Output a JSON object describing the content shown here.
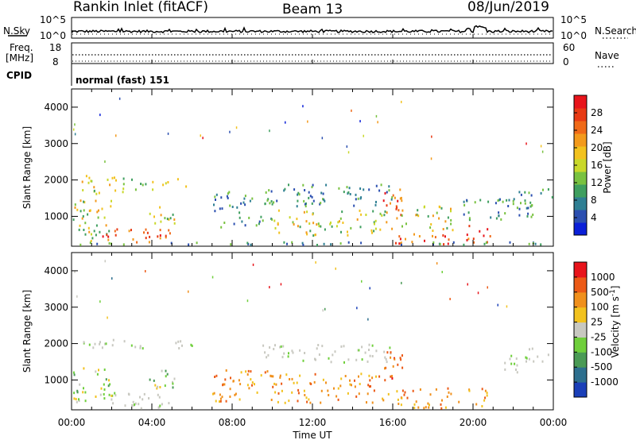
{
  "header": {
    "station": "Rankin Inlet (fitACF)",
    "beam": "Beam 13",
    "date": "08/Jun/2019"
  },
  "top_panels": {
    "nsky": {
      "label": "N.Sky",
      "ticks": [
        "10^5",
        "10^0"
      ]
    },
    "nsearch": {
      "label": "N.Search",
      "ticks": [
        "10^5",
        "10^0"
      ]
    },
    "freq": {
      "label_line1": "Freq.",
      "label_line2": "[MHz]",
      "ticks": [
        "18",
        "8"
      ]
    },
    "nave": {
      "label": "Nave",
      "ticks": [
        "60",
        "0"
      ]
    },
    "cpid": {
      "label": "CPID",
      "mode": "normal (fast) 151"
    }
  },
  "chart_data": [
    {
      "type": "heatmap",
      "name": "power",
      "ylabel": "Slant Range [km]",
      "xlabel": "",
      "xlim": [
        0,
        24
      ],
      "ylim": [
        180,
        4500
      ],
      "yticks": [
        "1000",
        "2000",
        "3000",
        "4000"
      ],
      "colorbar": {
        "label": "Power [dB]",
        "ticks": [
          "28",
          "24",
          "20",
          "16",
          "12",
          "8",
          "4"
        ],
        "colors": [
          "#0a1fd8",
          "#2b4fb0",
          "#2f7f93",
          "#3f9f5f",
          "#79c240",
          "#c9d82a",
          "#f2c21e",
          "#f39a1c",
          "#f06a18",
          "#e83a14",
          "#e8141b"
        ]
      },
      "regions": [
        {
          "t": [
            0.4,
            2.3
          ],
          "r": [
            1600,
            2150
          ],
          "level": "medium"
        },
        {
          "t": [
            2.5,
            4.2
          ],
          "r": [
            1700,
            2100
          ],
          "level": "medium"
        },
        {
          "t": [
            4.5,
            6.0
          ],
          "r": [
            1800,
            2100
          ],
          "level": "medium"
        },
        {
          "t": [
            0.0,
            2.0
          ],
          "r": [
            300,
            1500
          ],
          "level": "medium"
        },
        {
          "t": [
            1.5,
            5.0
          ],
          "r": [
            200,
            700
          ],
          "level": "high"
        },
        {
          "t": [
            3.8,
            5.2
          ],
          "r": [
            800,
            1300
          ],
          "level": "medium"
        },
        {
          "t": [
            7.0,
            10.0
          ],
          "r": [
            700,
            1700
          ],
          "level": "low"
        },
        {
          "t": [
            9.5,
            16.0
          ],
          "r": [
            1300,
            1900
          ],
          "level": "low"
        },
        {
          "t": [
            10.0,
            16.0
          ],
          "r": [
            500,
            1200
          ],
          "level": "medium"
        },
        {
          "t": [
            15.5,
            16.5
          ],
          "r": [
            900,
            1800
          ],
          "level": "high"
        },
        {
          "t": [
            16.0,
            19.3
          ],
          "r": [
            250,
            550
          ],
          "level": "high"
        },
        {
          "t": [
            16.0,
            19.0
          ],
          "r": [
            600,
            1300
          ],
          "level": "medium"
        },
        {
          "t": [
            19.5,
            21.0
          ],
          "r": [
            300,
            800
          ],
          "level": "high"
        },
        {
          "t": [
            19.5,
            23.0
          ],
          "r": [
            900,
            1500
          ],
          "level": "low"
        },
        {
          "t": [
            21.5,
            23.0
          ],
          "r": [
            1200,
            1700
          ],
          "level": "low"
        },
        {
          "t": [
            22.5,
            24.0
          ],
          "r": [
            1500,
            1800
          ],
          "level": "low"
        },
        {
          "t": [
            0.0,
            24.0
          ],
          "r": [
            180,
            320
          ],
          "level": "low"
        }
      ]
    },
    {
      "type": "heatmap",
      "name": "velocity",
      "ylabel": "Slant Range [km]",
      "xlabel": "Time UT",
      "xlim": [
        0,
        24
      ],
      "ylim": [
        180,
        4500
      ],
      "xticks": [
        "00:00",
        "04:00",
        "08:00",
        "12:00",
        "16:00",
        "20:00",
        "00:00"
      ],
      "yticks": [
        "1000",
        "2000",
        "3000",
        "4000"
      ],
      "colorbar": {
        "label": "Velocity [m s^-1]",
        "ticks": [
          "1000",
          "500",
          "100",
          "25",
          "-25",
          "-100",
          "-500",
          "-1000"
        ],
        "colors": [
          "#1a3fb8",
          "#2d6f8e",
          "#4a9a55",
          "#6fcf3b",
          "#c8c8c0",
          "#f2c21e",
          "#f0901c",
          "#ec5a16",
          "#e8141b"
        ]
      },
      "regions": [
        {
          "t": [
            0.4,
            2.3
          ],
          "r": [
            1900,
            2150
          ],
          "level": "ground"
        },
        {
          "t": [
            2.5,
            4.2
          ],
          "r": [
            1900,
            2100
          ],
          "level": "ground"
        },
        {
          "t": [
            4.5,
            6.0
          ],
          "r": [
            1900,
            2100
          ],
          "level": "ground"
        },
        {
          "t": [
            0.0,
            2.0
          ],
          "r": [
            400,
            1400
          ],
          "level": "toward"
        },
        {
          "t": [
            1.5,
            5.0
          ],
          "r": [
            200,
            700
          ],
          "level": "ground"
        },
        {
          "t": [
            3.8,
            5.2
          ],
          "r": [
            800,
            1300
          ],
          "level": "toward"
        },
        {
          "t": [
            7.0,
            10.0
          ],
          "r": [
            400,
            1300
          ],
          "level": "away"
        },
        {
          "t": [
            9.5,
            16.0
          ],
          "r": [
            1500,
            2000
          ],
          "level": "ground"
        },
        {
          "t": [
            10.0,
            16.0
          ],
          "r": [
            400,
            1200
          ],
          "level": "away"
        },
        {
          "t": [
            15.5,
            16.5
          ],
          "r": [
            900,
            1900
          ],
          "level": "strong_away"
        },
        {
          "t": [
            16.0,
            19.3
          ],
          "r": [
            250,
            800
          ],
          "level": "away"
        },
        {
          "t": [
            19.5,
            21.0
          ],
          "r": [
            300,
            800
          ],
          "level": "away"
        },
        {
          "t": [
            21.5,
            23.0
          ],
          "r": [
            1200,
            1700
          ],
          "level": "ground"
        },
        {
          "t": [
            22.5,
            24.0
          ],
          "r": [
            1500,
            1900
          ],
          "level": "ground"
        }
      ]
    }
  ]
}
